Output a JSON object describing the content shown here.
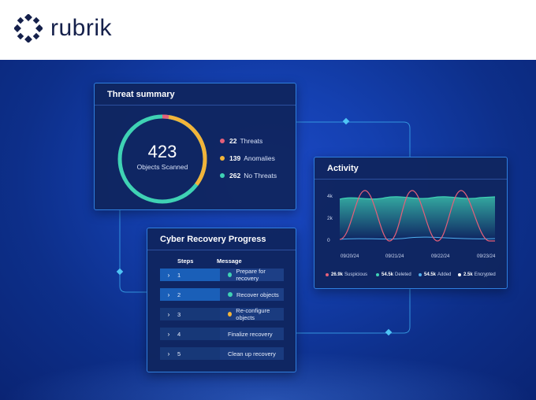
{
  "brand": {
    "name": "rubrik",
    "color": "#15204b"
  },
  "threat_summary": {
    "title": "Threat summary",
    "total": "423",
    "total_label": "Objects Scanned",
    "legend": [
      {
        "value": "22",
        "label": "Threats",
        "color": "#e5607a"
      },
      {
        "value": "139",
        "label": "Anomalies",
        "color": "#f2b43a"
      },
      {
        "value": "262",
        "label": "No Threats",
        "color": "#3fd2b4"
      }
    ]
  },
  "activity": {
    "title": "Activity",
    "y_ticks": [
      "4k",
      "2k",
      "0"
    ],
    "x_ticks": [
      "09/20/24",
      "09/21/24",
      "09/22/24",
      "09/23/24"
    ],
    "legend": [
      {
        "value": "26.9k",
        "label": "Suspicious",
        "color": "#e5607a"
      },
      {
        "value": "54.5k",
        "label": "Deleted",
        "color": "#3fd2b4"
      },
      {
        "value": "54.5k",
        "label": "Added",
        "color": "#4fb0f0"
      },
      {
        "value": "2.5k",
        "label": "Encrypted",
        "color": "#ffffff"
      }
    ]
  },
  "recovery": {
    "title": "Cyber Recovery Progress",
    "col_steps": "Steps",
    "col_message": "Message",
    "steps": [
      {
        "num": "1",
        "message": "Prepare for recovery",
        "status": "done",
        "status_color": "#3fd2b4"
      },
      {
        "num": "2",
        "message": "Recover objects",
        "status": "done",
        "status_color": "#3fd2b4"
      },
      {
        "num": "3",
        "message": "Re-configure objects",
        "status": "in-progress",
        "status_color": "#f2b43a"
      },
      {
        "num": "4",
        "message": "Finalize recovery",
        "status": "pending"
      },
      {
        "num": "5",
        "message": "Clean up recovery",
        "status": "pending"
      }
    ]
  }
}
